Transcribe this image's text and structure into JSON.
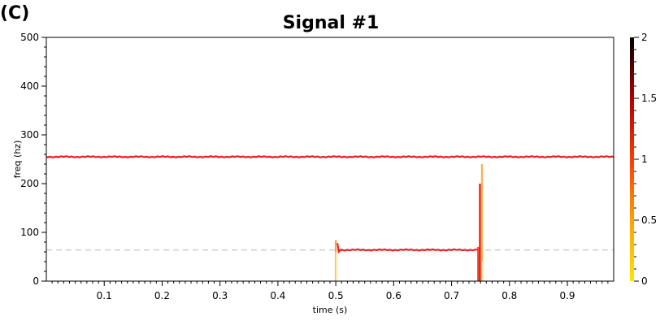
{
  "panel_label": "(C)",
  "chart_data": {
    "type": "line",
    "title": "Signal #1",
    "xlabel": "time (s)",
    "ylabel": "freq (hz)",
    "xlim": [
      0.0,
      0.98
    ],
    "ylim": [
      0,
      500
    ],
    "x_ticks": [
      0.1,
      0.2,
      0.3,
      0.4,
      0.5,
      0.6,
      0.7,
      0.8,
      0.9
    ],
    "x_tick_labels": [
      "0.1",
      "0.2",
      "0.3",
      "0.4",
      "0.5",
      "0.6",
      "0.7",
      "0.8",
      "0.9"
    ],
    "y_ticks": [
      0,
      100,
      200,
      300,
      400,
      500
    ],
    "y_tick_labels": [
      "0",
      "100",
      "200",
      "300",
      "400",
      "500"
    ],
    "grid": false,
    "reference_line": {
      "y": 64,
      "style": "dashed",
      "color": "#cccccc"
    },
    "series": [
      {
        "x_start": 0.0,
        "x_end": 0.98,
        "y": 255,
        "color": "#e8221f"
      },
      {
        "x_start": 0.505,
        "x_end": 0.745,
        "y": 64,
        "color": "#e8221f"
      }
    ],
    "spikes": [
      {
        "x": 0.5,
        "y_top": 84,
        "color": "#f6a24a"
      },
      {
        "x": 0.501,
        "y_top": 60,
        "color": "#fde6b0"
      },
      {
        "x": 0.746,
        "y_top": 70,
        "color": "#f04a2a"
      },
      {
        "x": 0.749,
        "y_top": 200,
        "color": "#e8200c"
      },
      {
        "x": 0.7525,
        "y_top": 240,
        "color": "#f6b45a"
      },
      {
        "x": 0.754,
        "y_top": 40,
        "color": "#fde6b0"
      }
    ],
    "colorbar": {
      "min": 0,
      "max": 2,
      "ticks": [
        0,
        0.5,
        1,
        1.5,
        2
      ],
      "tick_labels": [
        "0",
        "0.5",
        "1",
        "1.5",
        "2"
      ],
      "colors": [
        "#ffe400",
        "#ffa000",
        "#ff3a00",
        "#b00000",
        "#000000"
      ]
    }
  }
}
